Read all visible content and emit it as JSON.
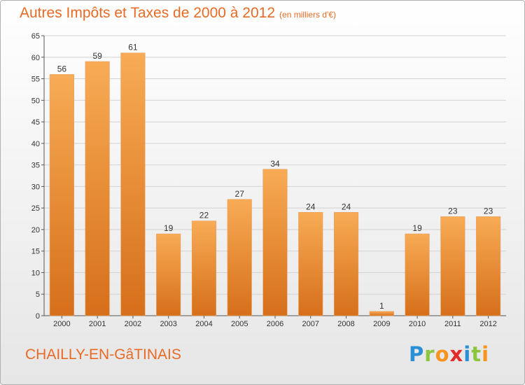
{
  "title": "Autres Impôts et Taxes de 2000 à 2012",
  "unit": "(en milliers d'€)",
  "commune": "CHAILLY-EN-GâTINAIS",
  "brand": {
    "letters": [
      "P",
      "r",
      "o",
      "x",
      "i",
      "t",
      "i"
    ],
    "colors": [
      "#2a8fd6",
      "#8cc63f",
      "#f7941d",
      "#e52a2a",
      "#2a8fd6",
      "#8cc63f",
      "#f7941d"
    ]
  },
  "colors": {
    "bar_light": "#f8ab55",
    "bar_dark": "#d66f1a",
    "accent": "#e86a24"
  },
  "chart_data": {
    "type": "bar",
    "categories": [
      "2000",
      "2001",
      "2002",
      "2003",
      "2004",
      "2005",
      "2006",
      "2007",
      "2008",
      "2009",
      "2010",
      "2011",
      "2012"
    ],
    "values": [
      56,
      59,
      61,
      19,
      22,
      27,
      34,
      24,
      24,
      1,
      19,
      23,
      23
    ],
    "ylim": [
      0,
      65
    ],
    "yticks": [
      0,
      5,
      10,
      15,
      20,
      25,
      30,
      35,
      40,
      45,
      50,
      55,
      60,
      65
    ],
    "grid": true
  }
}
